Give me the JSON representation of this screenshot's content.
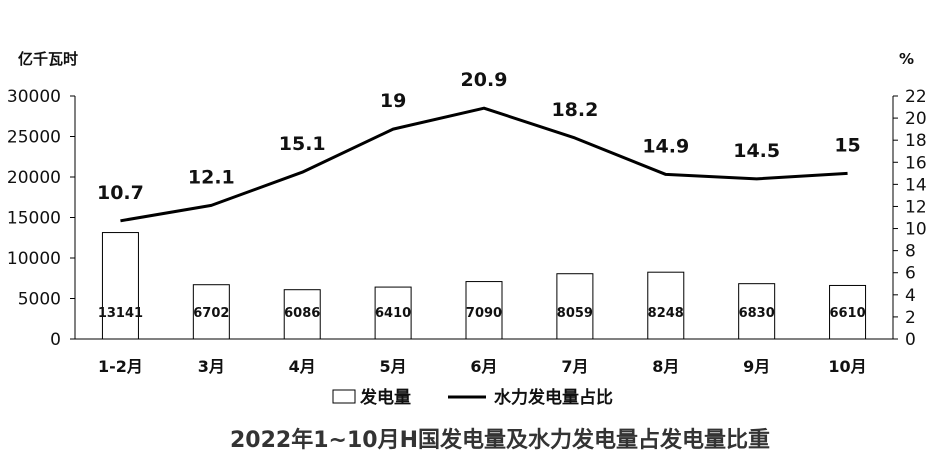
{
  "chart_data": {
    "type": "bar+line",
    "title": "2022年1~10月H国发电量及水力发电量占发电量比重",
    "left_unit": "亿千瓦时",
    "right_unit": "%",
    "categories": [
      "1-2月",
      "3月",
      "4月",
      "5月",
      "6月",
      "7月",
      "8月",
      "9月",
      "10月"
    ],
    "series": [
      {
        "name": "发电量",
        "type": "bar",
        "axis": "left",
        "values": [
          13141,
          6702,
          6086,
          6410,
          7090,
          8059,
          8248,
          6830,
          6610
        ]
      },
      {
        "name": "水力发电量占比",
        "type": "line",
        "axis": "right",
        "values": [
          10.7,
          12.1,
          15.1,
          19,
          20.9,
          18.2,
          14.9,
          14.5,
          15
        ]
      }
    ],
    "y_left": {
      "min": 0,
      "max": 30000,
      "ticks": [
        0,
        5000,
        10000,
        15000,
        20000,
        25000,
        30000
      ]
    },
    "y_right": {
      "min": 0,
      "max": 22,
      "ticks": [
        0,
        2,
        4,
        6,
        8,
        10,
        12,
        14,
        16,
        18,
        20,
        22
      ]
    },
    "legend_position": "bottom",
    "colors": {
      "bar_fill": "#ffffff",
      "bar_stroke": "#000000",
      "line": "#000000",
      "axis": "#000000"
    }
  }
}
